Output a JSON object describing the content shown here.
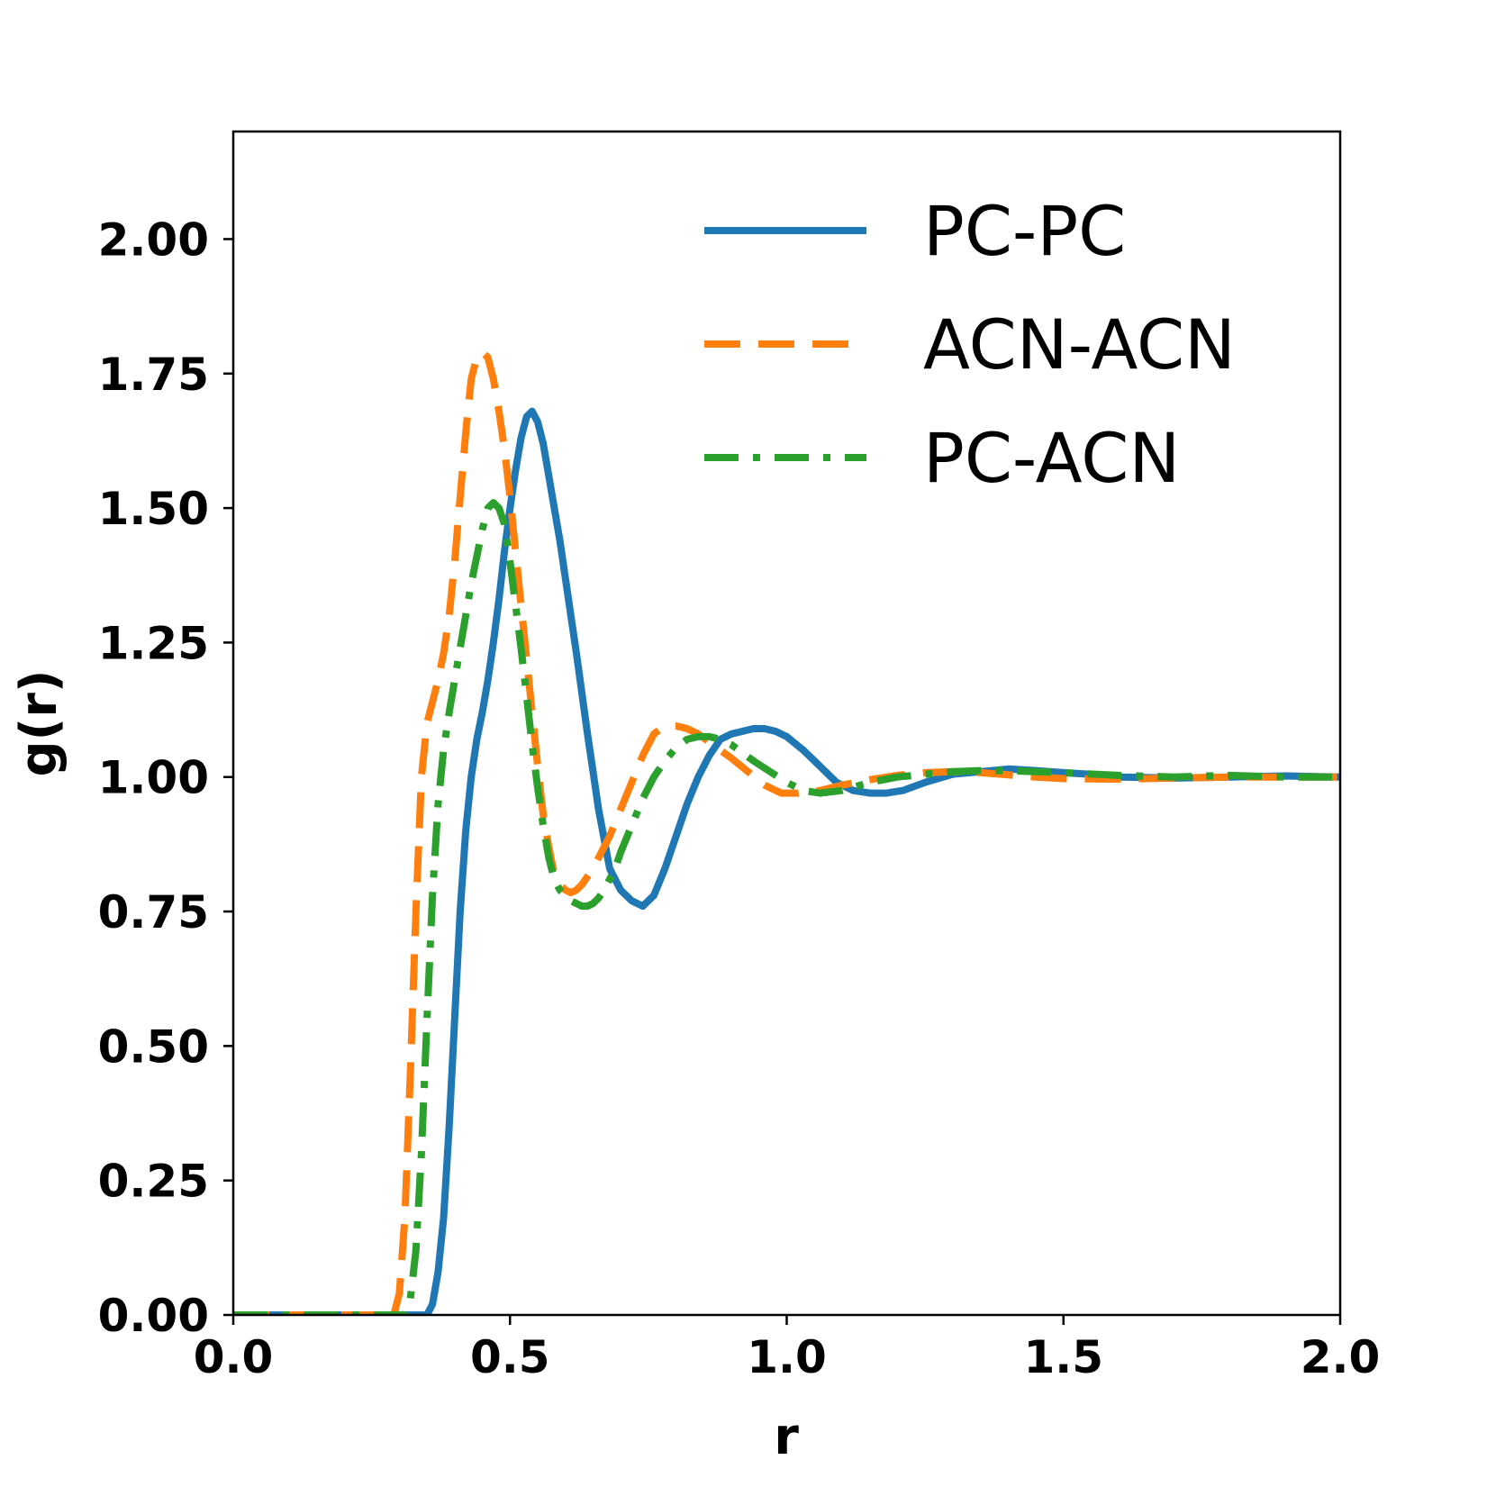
{
  "chart_data": {
    "type": "line",
    "xlabel": "r",
    "ylabel": "g(r)",
    "xlim": [
      0.0,
      2.0
    ],
    "ylim": [
      0.0,
      2.2
    ],
    "xticks": [
      "0.0",
      "0.5",
      "1.0",
      "1.5",
      "2.0"
    ],
    "yticks": [
      "0.00",
      "0.25",
      "0.50",
      "0.75",
      "1.00",
      "1.25",
      "1.50",
      "1.75",
      "2.00"
    ],
    "grid": false,
    "legend_position": "top-right",
    "series": [
      {
        "name": "PC-PC",
        "color": "#1f77b4",
        "style": "solid",
        "x": [
          0.0,
          0.35,
          0.36,
          0.37,
          0.38,
          0.39,
          0.4,
          0.41,
          0.42,
          0.43,
          0.44,
          0.45,
          0.46,
          0.47,
          0.48,
          0.49,
          0.5,
          0.51,
          0.52,
          0.53,
          0.54,
          0.55,
          0.56,
          0.57,
          0.58,
          0.59,
          0.6,
          0.62,
          0.64,
          0.66,
          0.68,
          0.7,
          0.72,
          0.74,
          0.76,
          0.78,
          0.8,
          0.82,
          0.84,
          0.86,
          0.88,
          0.9,
          0.92,
          0.94,
          0.96,
          0.98,
          1.0,
          1.03,
          1.06,
          1.09,
          1.12,
          1.15,
          1.18,
          1.21,
          1.25,
          1.3,
          1.35,
          1.4,
          1.45,
          1.5,
          1.55,
          1.6,
          1.7,
          1.8,
          1.9,
          2.0
        ],
        "y": [
          0.0,
          0.0,
          0.02,
          0.08,
          0.18,
          0.35,
          0.55,
          0.75,
          0.9,
          1.0,
          1.07,
          1.12,
          1.18,
          1.25,
          1.33,
          1.42,
          1.5,
          1.57,
          1.63,
          1.67,
          1.68,
          1.66,
          1.62,
          1.56,
          1.5,
          1.44,
          1.37,
          1.23,
          1.08,
          0.94,
          0.83,
          0.79,
          0.77,
          0.76,
          0.78,
          0.83,
          0.89,
          0.95,
          1.0,
          1.04,
          1.07,
          1.08,
          1.085,
          1.09,
          1.09,
          1.085,
          1.075,
          1.05,
          1.02,
          0.99,
          0.975,
          0.97,
          0.97,
          0.975,
          0.99,
          1.005,
          1.01,
          1.015,
          1.012,
          1.008,
          1.005,
          1.0,
          0.998,
          1.0,
          1.002,
          1.0
        ]
      },
      {
        "name": "ACN-ACN",
        "color": "#ff7f0e",
        "style": "dashed",
        "x": [
          0.0,
          0.29,
          0.3,
          0.31,
          0.32,
          0.33,
          0.34,
          0.35,
          0.36,
          0.37,
          0.38,
          0.39,
          0.4,
          0.41,
          0.42,
          0.43,
          0.44,
          0.45,
          0.46,
          0.47,
          0.48,
          0.49,
          0.5,
          0.51,
          0.52,
          0.53,
          0.54,
          0.55,
          0.56,
          0.57,
          0.58,
          0.59,
          0.6,
          0.61,
          0.62,
          0.63,
          0.64,
          0.65,
          0.66,
          0.67,
          0.68,
          0.7,
          0.72,
          0.74,
          0.76,
          0.78,
          0.8,
          0.82,
          0.84,
          0.86,
          0.88,
          0.9,
          0.93,
          0.96,
          0.99,
          1.02,
          1.06,
          1.1,
          1.15,
          1.2,
          1.25,
          1.3,
          1.35,
          1.4,
          1.45,
          1.5,
          1.6,
          1.7,
          1.8,
          1.9,
          2.0
        ],
        "y": [
          0.0,
          0.0,
          0.04,
          0.18,
          0.45,
          0.75,
          1.0,
          1.1,
          1.14,
          1.18,
          1.23,
          1.3,
          1.4,
          1.52,
          1.64,
          1.74,
          1.78,
          1.79,
          1.78,
          1.74,
          1.68,
          1.61,
          1.52,
          1.42,
          1.32,
          1.22,
          1.12,
          1.02,
          0.93,
          0.87,
          0.82,
          0.8,
          0.79,
          0.785,
          0.79,
          0.8,
          0.815,
          0.83,
          0.85,
          0.87,
          0.89,
          0.94,
          0.99,
          1.04,
          1.08,
          1.095,
          1.095,
          1.09,
          1.08,
          1.065,
          1.05,
          1.035,
          1.01,
          0.985,
          0.97,
          0.97,
          0.975,
          0.985,
          0.995,
          1.003,
          1.008,
          1.01,
          1.008,
          1.004,
          1.0,
          0.997,
          0.996,
          0.998,
          1.0,
          1.0,
          1.0
        ]
      },
      {
        "name": "PC-ACN",
        "color": "#2ca02c",
        "style": "dashdot",
        "x": [
          0.0,
          0.31,
          0.32,
          0.33,
          0.34,
          0.35,
          0.36,
          0.37,
          0.38,
          0.39,
          0.4,
          0.41,
          0.42,
          0.43,
          0.44,
          0.45,
          0.46,
          0.47,
          0.48,
          0.49,
          0.5,
          0.51,
          0.52,
          0.53,
          0.54,
          0.55,
          0.56,
          0.57,
          0.58,
          0.59,
          0.6,
          0.61,
          0.62,
          0.63,
          0.64,
          0.65,
          0.66,
          0.67,
          0.68,
          0.69,
          0.7,
          0.72,
          0.74,
          0.76,
          0.78,
          0.8,
          0.82,
          0.84,
          0.86,
          0.88,
          0.9,
          0.92,
          0.94,
          0.97,
          1.0,
          1.03,
          1.06,
          1.1,
          1.15,
          1.2,
          1.25,
          1.3,
          1.35,
          1.4,
          1.45,
          1.5,
          1.6,
          1.7,
          1.8,
          1.9,
          2.0
        ],
        "y": [
          0.0,
          0.0,
          0.03,
          0.12,
          0.3,
          0.55,
          0.78,
          0.95,
          1.05,
          1.12,
          1.18,
          1.24,
          1.3,
          1.36,
          1.41,
          1.46,
          1.5,
          1.51,
          1.5,
          1.47,
          1.4,
          1.32,
          1.24,
          1.15,
          1.06,
          0.98,
          0.91,
          0.85,
          0.81,
          0.79,
          0.78,
          0.77,
          0.765,
          0.76,
          0.76,
          0.765,
          0.775,
          0.79,
          0.81,
          0.83,
          0.86,
          0.91,
          0.96,
          1.0,
          1.03,
          1.055,
          1.07,
          1.075,
          1.075,
          1.07,
          1.06,
          1.045,
          1.03,
          1.01,
          0.99,
          0.975,
          0.97,
          0.975,
          0.99,
          1.0,
          1.005,
          1.01,
          1.012,
          1.012,
          1.01,
          1.008,
          1.003,
          1.0,
          1.003,
          1.0,
          1.0
        ]
      }
    ]
  }
}
